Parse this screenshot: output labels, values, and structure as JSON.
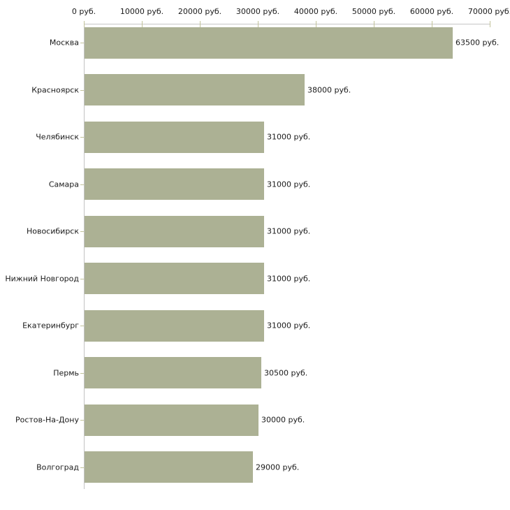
{
  "chart_data": {
    "type": "bar",
    "orientation": "horizontal",
    "title": "",
    "xlabel": "",
    "ylabel": "",
    "categories": [
      "Москва",
      "Красноярск",
      "Челябинск",
      "Самара",
      "Новосибирск",
      "Нижний Новгород",
      "Екатеринбург",
      "Пермь",
      "Ростов-На-Дону",
      "Волгоград"
    ],
    "values": [
      63500,
      38000,
      31000,
      31000,
      31000,
      31000,
      31000,
      30500,
      30000,
      29000
    ],
    "value_labels": [
      "63500 руб.",
      "38000 руб.",
      "31000 руб.",
      "31000 руб.",
      "31000 руб.",
      "31000 руб.",
      "31000 руб.",
      "30500 руб.",
      "30000 руб.",
      "29000 руб."
    ],
    "x_ticks": [
      0,
      10000,
      20000,
      30000,
      40000,
      50000,
      60000,
      70000
    ],
    "x_tick_labels": [
      "0 руб.",
      "10000 руб.",
      "20000 руб.",
      "30000 руб.",
      "40000 руб.",
      "50000 руб.",
      "60000 руб.",
      "70000 руб."
    ],
    "xlim": [
      0,
      70000
    ],
    "grid": false,
    "legend": null,
    "colors": {
      "bar": "#acb194",
      "axis_line": "#c6c6c6",
      "tick_mark": "#c2c39a",
      "text": "#1a1a1a",
      "background": "#ffffff"
    }
  }
}
